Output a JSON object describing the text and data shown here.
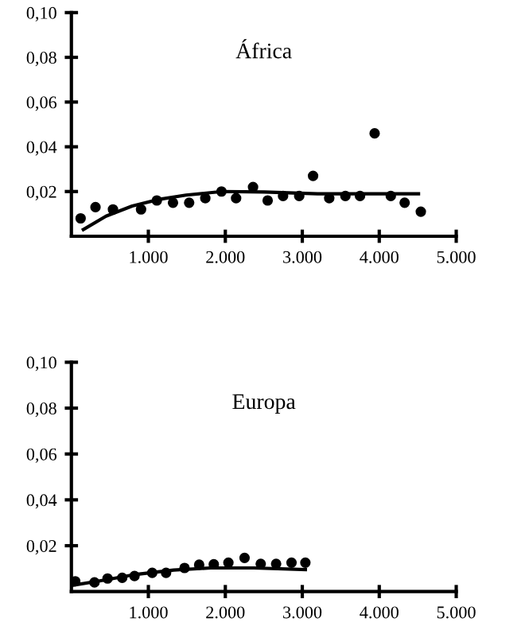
{
  "chart_data": [
    {
      "type": "scatter",
      "title": "África",
      "xlim": [
        0,
        5000
      ],
      "ylim": [
        0,
        0.1
      ],
      "xticks": [
        {
          "value": 1000,
          "label": "1.000"
        },
        {
          "value": 2000,
          "label": "2.000"
        },
        {
          "value": 3000,
          "label": "3.000"
        },
        {
          "value": 4000,
          "label": "4.000"
        },
        {
          "value": 5000,
          "label": "5.000"
        }
      ],
      "yticks": [
        {
          "value": 0.02,
          "label": "0,02"
        },
        {
          "value": 0.04,
          "label": "0,04"
        },
        {
          "value": 0.06,
          "label": "0,06"
        },
        {
          "value": 0.08,
          "label": "0,08"
        },
        {
          "value": 0.1,
          "label": "0,10"
        }
      ],
      "grid": false,
      "legend": false,
      "series": [
        {
          "color": "#000000",
          "marker": "circle",
          "x": [
            120,
            313,
            540,
            905,
            1110,
            1320,
            1530,
            1740,
            1950,
            2140,
            2360,
            2550,
            2750,
            2960,
            3140,
            3350,
            3560,
            3750,
            3940,
            4150,
            4330,
            4540
          ],
          "values": [
            0.008,
            0.013,
            0.012,
            0.012,
            0.016,
            0.015,
            0.015,
            0.017,
            0.02,
            0.017,
            0.022,
            0.016,
            0.018,
            0.018,
            0.027,
            0.017,
            0.018,
            0.018,
            0.046,
            0.018,
            0.015,
            0.011
          ]
        },
        {
          "type": "line",
          "color": "#000000",
          "line_style": "solid",
          "x": [
            155,
            450,
            790,
            1140,
            1490,
            1960,
            2510,
            3200,
            4510
          ],
          "values": [
            0.003,
            0.009,
            0.0135,
            0.0165,
            0.0184,
            0.02,
            0.0198,
            0.019,
            0.019
          ]
        }
      ]
    },
    {
      "type": "scatter",
      "title": "Europa",
      "xlim": [
        0,
        5000
      ],
      "ylim": [
        0,
        0.1
      ],
      "xticks": [
        {
          "value": 1000,
          "label": "1.000"
        },
        {
          "value": 2000,
          "label": "2.000"
        },
        {
          "value": 3000,
          "label": "3.000"
        },
        {
          "value": 4000,
          "label": "4.000"
        },
        {
          "value": 5000,
          "label": "5.000"
        }
      ],
      "yticks": [
        {
          "value": 0.02,
          "label": "0,02"
        },
        {
          "value": 0.04,
          "label": "0,04"
        },
        {
          "value": 0.06,
          "label": "0,06"
        },
        {
          "value": 0.08,
          "label": "0,08"
        },
        {
          "value": 0.1,
          "label": "0,10"
        }
      ],
      "grid": false,
      "legend": false,
      "series": [
        {
          "color": "#000000",
          "marker": "circle",
          "x": [
            50,
            300,
            470,
            660,
            820,
            1050,
            1230,
            1470,
            1660,
            1850,
            2040,
            2250,
            2460,
            2660,
            2860,
            3040
          ],
          "values": [
            0.0045,
            0.004,
            0.0057,
            0.006,
            0.0068,
            0.0082,
            0.0082,
            0.0103,
            0.0117,
            0.0119,
            0.0126,
            0.0147,
            0.0121,
            0.0121,
            0.0126,
            0.0126
          ]
        },
        {
          "type": "line",
          "color": "#000000",
          "line_style": "solid",
          "x": [
            15,
            430,
            840,
            1330,
            1810,
            2370,
            3040
          ],
          "values": [
            0.0027,
            0.005,
            0.0075,
            0.0094,
            0.0103,
            0.0103,
            0.0096
          ]
        }
      ]
    }
  ]
}
